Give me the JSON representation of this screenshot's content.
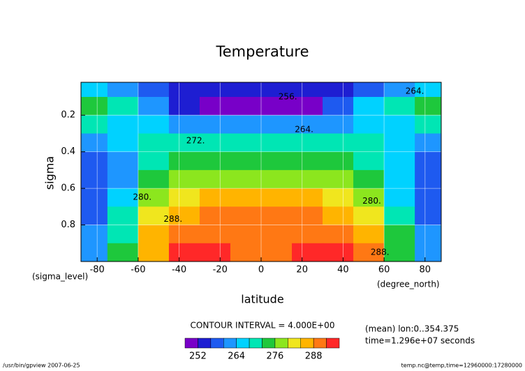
{
  "chart_data": {
    "type": "contour",
    "title": "Temperature",
    "xlabel": "latitude",
    "ylabel": "sigma",
    "xunit": "(degree_north)",
    "yunit": "(sigma_level)",
    "contour_interval": "CONTOUR INTERVAL = 4.000E+00",
    "notes": [
      "(mean) lon:0..354.375",
      "time=1.296e+07 seconds"
    ],
    "footer_left": "/usr/bin/gpview  2007-06-25",
    "footer_right": "temp.nc@temp,time=12960000:17280000",
    "x": [
      -82.5,
      -67.5,
      -52.5,
      -37.5,
      -22.5,
      -7.5,
      7.5,
      22.5,
      37.5,
      52.5,
      67.5,
      82.5
    ],
    "y": [
      0.05,
      0.15,
      0.25,
      0.35,
      0.45,
      0.55,
      0.65,
      0.75,
      0.85,
      0.95
    ],
    "z": [
      [
        265,
        262,
        258,
        255,
        254,
        254,
        254,
        254,
        255,
        258,
        263,
        265
      ],
      [
        274,
        270,
        262,
        255,
        251,
        250,
        250,
        251,
        256,
        264,
        270,
        274
      ],
      [
        268,
        267,
        265,
        262,
        260,
        260,
        260,
        260,
        262,
        265,
        267,
        268
      ],
      [
        262,
        265,
        268,
        268,
        268,
        268,
        268,
        268,
        268,
        268,
        265,
        262
      ],
      [
        258,
        263,
        270,
        273,
        274,
        274,
        274,
        274,
        273,
        270,
        264,
        258
      ],
      [
        256,
        262,
        272,
        277,
        278,
        278,
        278,
        278,
        278,
        273,
        264,
        256
      ],
      [
        256,
        264,
        276,
        281,
        284,
        285,
        285,
        285,
        283,
        278,
        266,
        257
      ],
      [
        258,
        268,
        281,
        286,
        288,
        288,
        288,
        288,
        287,
        283,
        270,
        258
      ],
      [
        260,
        270,
        285,
        290,
        290,
        289,
        289,
        290,
        291,
        286,
        272,
        260
      ],
      [
        262,
        272,
        287,
        293,
        293,
        291,
        291,
        293,
        295,
        288,
        274,
        262
      ]
    ],
    "levels": [
      248,
      252,
      256,
      260,
      264,
      268,
      272,
      276,
      280,
      284,
      288,
      292,
      296
    ],
    "colors": [
      "#7800c8",
      "#1e1ed2",
      "#1e5af0",
      "#1e96ff",
      "#00d2ff",
      "#00e6b4",
      "#1ec83c",
      "#8ce61e",
      "#f0e61e",
      "#ffb400",
      "#ff7814",
      "#ff2828"
    ],
    "colorbar_ticks": [
      252,
      264,
      276,
      288
    ],
    "annotations": [
      {
        "text": "256.",
        "x": 13,
        "y": 0.1
      },
      {
        "text": "264.",
        "x": 75,
        "y": 0.07
      },
      {
        "text": "264.",
        "x": 21,
        "y": 0.28
      },
      {
        "text": "272.",
        "x": -32,
        "y": 0.34
      },
      {
        "text": "280.",
        "x": -58,
        "y": 0.65
      },
      {
        "text": "280.",
        "x": 54,
        "y": 0.67
      },
      {
        "text": "288.",
        "x": -43,
        "y": 0.77
      },
      {
        "text": "288.",
        "x": 58,
        "y": 0.95
      }
    ],
    "xlim": [
      -87.9,
      87.9
    ],
    "ylim": [
      1,
      0.02
    ],
    "xticks": [
      -80,
      -60,
      -40,
      -20,
      0,
      20,
      40,
      60,
      80
    ],
    "yticks": [
      0.2,
      0.4,
      0.6,
      0.8
    ],
    "grid": true
  }
}
